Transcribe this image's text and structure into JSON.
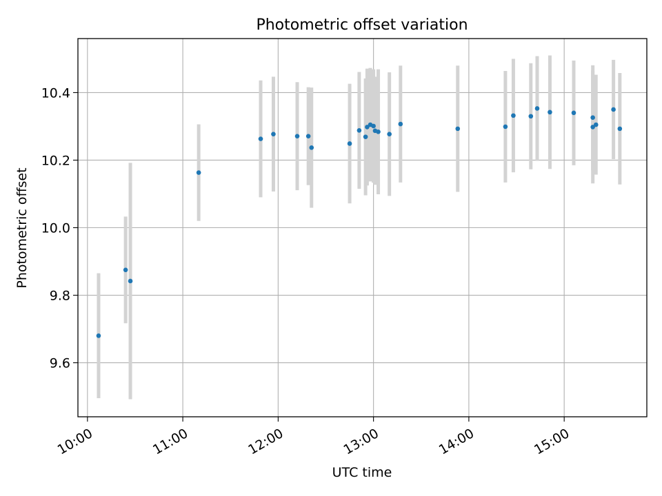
{
  "chart_data": {
    "type": "scatter",
    "title": "Photometric offset variation",
    "xlabel": "UTC time",
    "ylabel": "Photometric offset",
    "x_axis_type": "time",
    "xlim": [
      "09:54",
      "15:52"
    ],
    "ylim": [
      9.44,
      10.56
    ],
    "xticks": [
      "10:00",
      "11:00",
      "12:00",
      "13:00",
      "14:00",
      "15:00"
    ],
    "yticks": [
      9.6,
      9.8,
      10.0,
      10.2,
      10.4
    ],
    "ytick_labels": [
      "9.6",
      "9.8",
      "10.0",
      "10.2",
      "10.4"
    ],
    "grid": true,
    "legend": "none",
    "colors": {
      "point": "#1f77b4",
      "errorbar": "#d3d3d3",
      "grid": "#b0b0b0",
      "axes": "#000000"
    },
    "series": [
      {
        "points": [
          {
            "x": "10:07",
            "y": 9.68,
            "yerr": 0.185
          },
          {
            "x": "10:24",
            "y": 9.875,
            "yerr": 0.158
          },
          {
            "x": "10:27",
            "y": 9.842,
            "yerr": 0.35
          },
          {
            "x": "11:10",
            "y": 10.163,
            "yerr": 0.143
          },
          {
            "x": "11:49",
            "y": 10.263,
            "yerr": 0.173
          },
          {
            "x": "11:57",
            "y": 10.277,
            "yerr": 0.17
          },
          {
            "x": "12:12",
            "y": 10.271,
            "yerr": 0.16
          },
          {
            "x": "12:19",
            "y": 10.271,
            "yerr": 0.145
          },
          {
            "x": "12:21",
            "y": 10.237,
            "yerr": 0.178
          },
          {
            "x": "12:45",
            "y": 10.249,
            "yerr": 0.177
          },
          {
            "x": "12:51",
            "y": 10.288,
            "yerr": 0.173
          },
          {
            "x": "12:55",
            "y": 10.269,
            "yerr": 0.173
          },
          {
            "x": "12:56",
            "y": 10.298,
            "yerr": 0.173
          },
          {
            "x": "12:58",
            "y": 10.305,
            "yerr": 0.168
          },
          {
            "x": "13:00",
            "y": 10.301,
            "yerr": 0.168
          },
          {
            "x": "13:01",
            "y": 10.287,
            "yerr": 0.16
          },
          {
            "x": "13:03",
            "y": 10.284,
            "yerr": 0.185
          },
          {
            "x": "13:10",
            "y": 10.277,
            "yerr": 0.183
          },
          {
            "x": "13:17",
            "y": 10.307,
            "yerr": 0.173
          },
          {
            "x": "13:53",
            "y": 10.293,
            "yerr": 0.187
          },
          {
            "x": "14:23",
            "y": 10.299,
            "yerr": 0.165
          },
          {
            "x": "14:28",
            "y": 10.332,
            "yerr": 0.168
          },
          {
            "x": "14:39",
            "y": 10.33,
            "yerr": 0.157
          },
          {
            "x": "14:43",
            "y": 10.353,
            "yerr": 0.155
          },
          {
            "x": "14:51",
            "y": 10.342,
            "yerr": 0.168
          },
          {
            "x": "15:06",
            "y": 10.34,
            "yerr": 0.155
          },
          {
            "x": "15:18",
            "y": 10.298,
            "yerr": 0.167
          },
          {
            "x": "15:18",
            "y": 10.326,
            "yerr": 0.155
          },
          {
            "x": "15:20",
            "y": 10.305,
            "yerr": 0.148
          },
          {
            "x": "15:31",
            "y": 10.35,
            "yerr": 0.147
          },
          {
            "x": "15:35",
            "y": 10.293,
            "yerr": 0.165
          }
        ]
      }
    ]
  }
}
